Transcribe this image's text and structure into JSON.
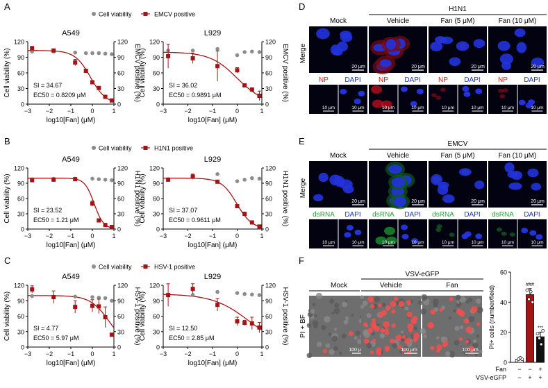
{
  "panel_letters": {
    "A": "A",
    "B": "B",
    "C": "C",
    "D": "D",
    "E": "E",
    "F": "F"
  },
  "legend_cell": "Cell viability",
  "y_left_label": "Cell viability (%)",
  "x_label": "log10[Fan] (μM)",
  "chart_data": [
    {
      "id": "A1",
      "type": "scatter",
      "title": "A549",
      "legend_series": "EMCV positive",
      "ylabel_right": "EMCV positive (%)",
      "ylim": [
        0,
        120
      ],
      "xlim": [
        -3,
        1
      ],
      "xticks": [
        -3,
        -2,
        -1,
        0,
        1
      ],
      "yticks": [
        0,
        30,
        60,
        90,
        120
      ],
      "si": "SI = 34.67",
      "ec": "EC50 = 0.8209 μM",
      "cell_viability": [
        [
          -2.8,
          101
        ],
        [
          -1.8,
          101
        ],
        [
          -0.8,
          99
        ],
        [
          -0.3,
          98
        ],
        [
          0,
          98
        ],
        [
          0.3,
          98
        ],
        [
          0.6,
          97
        ],
        [
          0.9,
          96
        ]
      ],
      "infection": [
        [
          -2.8,
          107,
          4
        ],
        [
          -1.8,
          103,
          3
        ],
        [
          -0.8,
          80,
          6
        ],
        [
          -0.3,
          64,
          3
        ],
        [
          0,
          42,
          2
        ],
        [
          0.3,
          31,
          2
        ],
        [
          0.6,
          14,
          1
        ],
        [
          0.9,
          7,
          1
        ]
      ],
      "fit": {
        "top": 103,
        "ec50": 0.8209,
        "hill": 1.2
      }
    },
    {
      "id": "A2",
      "type": "scatter",
      "title": "L929",
      "legend_series": "",
      "ylabel_right": "EMCV positive (%)",
      "ylim": [
        0,
        120
      ],
      "xlim": [
        -3,
        1
      ],
      "xticks": [
        -3,
        -2,
        -1,
        0,
        1
      ],
      "yticks": [
        0,
        30,
        60,
        90,
        120
      ],
      "si": "SI = 36.02",
      "ec": "EC50 = 0.9891 μM",
      "cell_viability": [
        [
          -2.8,
          103
        ],
        [
          -1.8,
          103
        ],
        [
          -0.8,
          106
        ],
        [
          0,
          94
        ],
        [
          0.3,
          100
        ],
        [
          0.6,
          101
        ],
        [
          0.9,
          100
        ]
      ],
      "infection": [
        [
          -2.8,
          92,
          23
        ],
        [
          -1.8,
          88,
          10
        ],
        [
          -0.8,
          73,
          29
        ],
        [
          0,
          65,
          5
        ],
        [
          0.3,
          36,
          3
        ],
        [
          0.6,
          28,
          2
        ],
        [
          0.9,
          16,
          9
        ]
      ],
      "fit": {
        "top": 100,
        "ec50": 0.9891,
        "hill": 0.8
      }
    },
    {
      "id": "B1",
      "type": "scatter",
      "title": "A549",
      "legend_series": "H1N1 positive",
      "ylabel_right": "H1N1 positive (%)",
      "ylim": [
        0,
        120
      ],
      "xlim": [
        -3,
        1
      ],
      "xticks": [
        -3,
        -2,
        -1,
        0,
        1
      ],
      "yticks": [
        0,
        30,
        60,
        90,
        120
      ],
      "si": "SI = 23.52",
      "ec": "EC50 = 1.21 μM",
      "cell_viability": [
        [
          -2.8,
          98
        ],
        [
          -1.8,
          99
        ],
        [
          -0.8,
          99
        ],
        [
          0,
          99
        ],
        [
          0.3,
          98
        ],
        [
          0.6,
          97
        ],
        [
          0.9,
          96
        ]
      ],
      "infection": [
        [
          -2.8,
          96,
          2
        ],
        [
          -1.8,
          97,
          2
        ],
        [
          -0.8,
          98,
          2
        ],
        [
          0,
          50,
          5
        ],
        [
          0.3,
          17,
          2
        ],
        [
          0.6,
          8,
          1
        ],
        [
          0.9,
          4,
          1
        ]
      ],
      "fit": {
        "top": 100,
        "ec50": 1.21,
        "hill": 2.0
      }
    },
    {
      "id": "B2",
      "type": "scatter",
      "title": "L929",
      "legend_series": "",
      "ylabel_right": "H1N1 positive (%)",
      "ylim": [
        0,
        120
      ],
      "xlim": [
        -3,
        1
      ],
      "xticks": [
        -3,
        -2,
        -1,
        0,
        1
      ],
      "yticks": [
        0,
        30,
        60,
        90,
        120
      ],
      "si": "SI = 37.07",
      "ec": "EC50 = 0.9611 μM",
      "cell_viability": [
        [
          -2.8,
          98
        ],
        [
          -1.8,
          104
        ],
        [
          -0.8,
          108
        ],
        [
          0,
          94
        ],
        [
          0.3,
          97
        ],
        [
          0.6,
          100
        ],
        [
          0.9,
          99
        ]
      ],
      "infection": [
        [
          -2.8,
          97,
          2
        ],
        [
          -1.8,
          103,
          5
        ],
        [
          -0.8,
          93,
          3
        ],
        [
          0,
          45,
          3
        ],
        [
          0.3,
          30,
          2
        ],
        [
          0.6,
          13,
          2
        ],
        [
          0.9,
          5,
          1
        ]
      ],
      "fit": {
        "top": 100,
        "ec50": 0.9611,
        "hill": 1.4
      }
    },
    {
      "id": "C1",
      "type": "scatter",
      "title": "A549",
      "legend_series": "HSV-1 positive",
      "ylabel_right": "HSV-1 positive (%)",
      "ylim": [
        0,
        120
      ],
      "xlim": [
        -3,
        1
      ],
      "xticks": [
        -3,
        -2,
        -1,
        0,
        1
      ],
      "yticks": [
        0,
        30,
        60,
        90,
        120
      ],
      "si": "SI = 4.77",
      "ec": "EC50 = 5.97 μM",
      "cell_viability": [
        [
          -2.8,
          99
        ],
        [
          -1.8,
          98
        ],
        [
          -0.8,
          98
        ],
        [
          0,
          97
        ],
        [
          0.3,
          96
        ],
        [
          0.6,
          95
        ],
        [
          0.9,
          90
        ]
      ],
      "infection": [
        [
          -2.8,
          112,
          7
        ],
        [
          -1.8,
          97,
          12
        ],
        [
          -0.8,
          78,
          12
        ],
        [
          0,
          80,
          12
        ],
        [
          0.3,
          79,
          14
        ],
        [
          0.6,
          58,
          20
        ],
        [
          0.9,
          24,
          3
        ]
      ],
      "fit": {
        "top": 100,
        "ec50": 5.97,
        "hill": 1.0
      }
    },
    {
      "id": "C2",
      "type": "scatter",
      "title": "L929",
      "legend_series": "",
      "ylabel_right": "HSV-1 positive (%)",
      "ylim": [
        0,
        120
      ],
      "xlim": [
        -3,
        1
      ],
      "xticks": [
        -3,
        -2,
        -1,
        0,
        1
      ],
      "yticks": [
        0,
        30,
        60,
        90,
        120
      ],
      "si": "SI = 12.50",
      "ec": "EC50 = 2.85 μM",
      "cell_viability": [
        [
          -2.8,
          101
        ],
        [
          -1.8,
          101
        ],
        [
          -0.8,
          107
        ],
        [
          0,
          105
        ],
        [
          0.3,
          103
        ],
        [
          0.6,
          102
        ],
        [
          0.9,
          101
        ]
      ],
      "infection": [
        [
          -2.8,
          101,
          22
        ],
        [
          -1.8,
          113,
          10
        ],
        [
          -0.8,
          82,
          12
        ],
        [
          0,
          50,
          8
        ],
        [
          0.3,
          47,
          5
        ],
        [
          0.6,
          46,
          12
        ],
        [
          0.9,
          38,
          10
        ]
      ],
      "fit": {
        "top": 103,
        "ec50": 2.85,
        "hill": 0.6
      }
    },
    {
      "id": "F",
      "type": "bar",
      "categories": [
        "Mock",
        "Vehicle",
        "Fan"
      ],
      "values": [
        2,
        45,
        17
      ],
      "errors": [
        1,
        4,
        3
      ],
      "points": [
        [
          1,
          2,
          3,
          2
        ],
        [
          48,
          42,
          47,
          40
        ],
        [
          19,
          16,
          12,
          21
        ]
      ],
      "ylabel": "PI+ cells (number/field)",
      "ylim": [
        0,
        60
      ],
      "yticks": [
        0,
        20,
        40,
        60
      ],
      "sig_vehicle": "###",
      "sig_fan": "***",
      "rows": [
        {
          "label": "Fan",
          "values": [
            "−",
            "−",
            "+"
          ]
        },
        {
          "label": "VSV-eGFP",
          "values": [
            "−",
            "+",
            "+"
          ]
        }
      ]
    }
  ],
  "micro_D": {
    "virus": "H1N1",
    "columns": [
      "Mock",
      "Vehicle",
      "Fan (5 μM)",
      "Fan (10 μM)"
    ],
    "row_label": "Merge",
    "stain1": "NP",
    "stain2": "DAPI",
    "scale_big": "20 μm",
    "scale_small": "10 μm"
  },
  "micro_E": {
    "virus": "EMCV",
    "columns": [
      "Mock",
      "Vehicle",
      "Fan (5 μM)",
      "Fan (10 μM)"
    ],
    "row_label": "Merge",
    "stain1": "dsRNA",
    "stain2": "DAPI",
    "scale_big": "20 μm",
    "scale_small": "10 μm"
  },
  "micro_F": {
    "virus": "VSV-eGFP",
    "columns": [
      "Mock",
      "Vehicle",
      "Fan"
    ],
    "row_label": "PI + BF",
    "scale": "100 μm"
  },
  "colors": {
    "red": "#a31515",
    "grey": "#8c8c8c",
    "blue": "#1a2fd6",
    "green": "#23a83a"
  }
}
